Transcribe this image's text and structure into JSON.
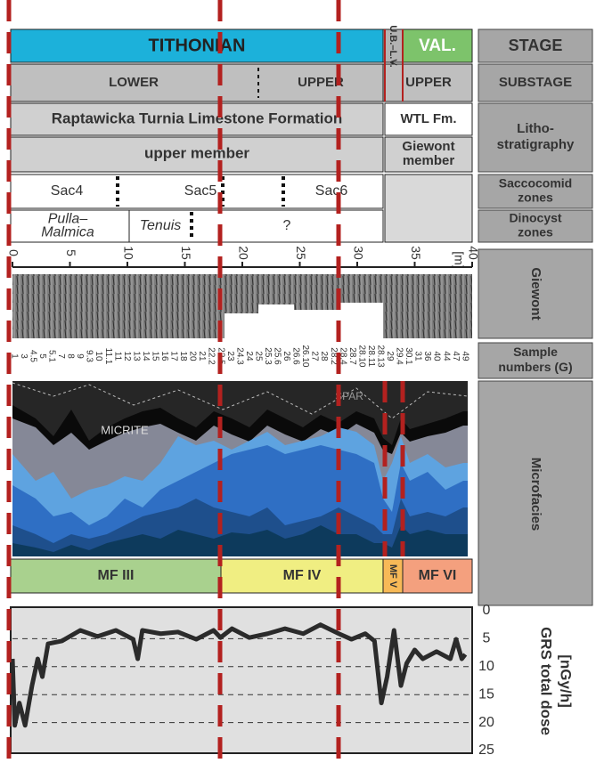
{
  "stage": {
    "label": "STAGE",
    "cells": [
      "TITHONIAN",
      "U.B.–L.V.",
      "VAL."
    ]
  },
  "substage": {
    "label": "SUBSTAGE",
    "cells": [
      "LOWER",
      "UPPER",
      "UPPER"
    ]
  },
  "lithostratigraphy": {
    "label": [
      "Litho-",
      "stratigraphy"
    ],
    "formation": [
      "Raptawicka Turnia Limestone Formation",
      "WTL Fm."
    ],
    "member": [
      [
        "upper member"
      ],
      [
        "Giewont",
        "member"
      ]
    ]
  },
  "saccocomid": {
    "label": [
      "Saccocomid",
      "zones"
    ],
    "cells": [
      "Sac4",
      "Sac5",
      "Sac6"
    ]
  },
  "dinocyst": {
    "label": [
      "Dinocyst",
      "zones"
    ],
    "cells": [
      [
        "Pulla–",
        "Malmica"
      ],
      [
        "Tenuis"
      ],
      [
        "?"
      ]
    ]
  },
  "section": {
    "label": "Giewont",
    "unit": "[m]"
  },
  "samples": {
    "label": [
      "Sample",
      "numbers (G)"
    ],
    "numbers": [
      "1",
      "3",
      "4.5",
      "5",
      "5.1",
      "7",
      "8",
      "9",
      "9.3",
      "10",
      "11.1",
      "11",
      "12",
      "13",
      "14",
      "15",
      "16",
      "17",
      "18",
      "20",
      "21",
      "22.2",
      "22.5",
      "23",
      "24.3",
      "24",
      "25",
      "25.3",
      "25.6",
      "26",
      "26.6",
      "26.10",
      "27",
      "28",
      "28.2",
      "28.4",
      "28.7",
      "28.10",
      "28.11",
      "28.13",
      "29",
      "29.4",
      "30.1",
      "31",
      "36",
      "40",
      "44",
      "47",
      "49"
    ]
  },
  "microfacies": {
    "label": "Microfacies",
    "annotations": [
      "SPAR",
      "MICRITE"
    ],
    "zones": [
      "MF III",
      "MF IV",
      "MF V",
      "MF VI"
    ]
  },
  "chart_data": {
    "type": "line",
    "ylabel": [
      "GRS total dose",
      "[nGy/h]"
    ],
    "color": "#2b2b2b",
    "x": [
      0,
      0.2,
      0.6,
      1.1,
      1.7,
      2.2,
      2.6,
      3.1,
      4.3,
      5.9,
      7.4,
      9,
      10.5,
      10.9,
      11.3,
      12.9,
      14.4,
      16,
      17.5,
      18.1,
      19.1,
      20.6,
      22.2,
      23.7,
      25.3,
      26.8,
      28.4,
      29.5,
      30.7,
      31.5,
      32.1,
      32.6,
      33.2,
      33.8,
      34.3,
      35,
      35.7,
      36.9,
      38.1,
      38.6,
      39.1,
      39.4
    ],
    "values": [
      8.6,
      20.5,
      16.5,
      20.5,
      13.4,
      8.6,
      11.8,
      5.9,
      5.4,
      3.5,
      4.6,
      3.5,
      5.1,
      8.6,
      3.5,
      4.1,
      3.8,
      5.1,
      3.5,
      4.8,
      3.2,
      4.8,
      4.1,
      3.2,
      4.1,
      2.5,
      4.1,
      5.1,
      4.1,
      5.4,
      16.5,
      11.8,
      3.5,
      13.4,
      9.4,
      7,
      8.6,
      7.3,
      8.6,
      5.1,
      8.6,
      7.8
    ],
    "xlim": [
      0,
      40
    ],
    "xticks": [
      0,
      5,
      10,
      15,
      20,
      25,
      30,
      35,
      40
    ],
    "ylim": [
      0,
      25
    ],
    "yticks": [
      0,
      5,
      10,
      15,
      20,
      25
    ],
    "y_inverted": true,
    "grid": true
  }
}
